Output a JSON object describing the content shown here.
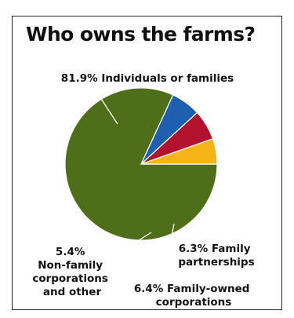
{
  "chart_data": {
    "type": "pie",
    "title": "Who owns the farms?",
    "slices": [
      {
        "name": "Individuals or families",
        "value": 81.9,
        "value_label": "81.9%",
        "label_lines": [
          "81.9% Individuals or families"
        ],
        "color": "#4e6e1a"
      },
      {
        "name": "Family partnerships",
        "value": 6.3,
        "value_label": "6.3%",
        "label_lines": [
          "6.3% Family",
          "partnerships"
        ],
        "color": "#1f5fb0"
      },
      {
        "name": "Family-owned corporations",
        "value": 6.4,
        "value_label": "6.4%",
        "label_lines": [
          "6.4% Family-owned",
          "corporations"
        ],
        "color": "#b3122e"
      },
      {
        "name": "Non-family corporations and other",
        "value": 5.4,
        "value_label": "5.4%",
        "label_lines": [
          "5.4%",
          "Non-family",
          "corporations",
          "and other"
        ],
        "color": "#f6b418"
      }
    ]
  }
}
